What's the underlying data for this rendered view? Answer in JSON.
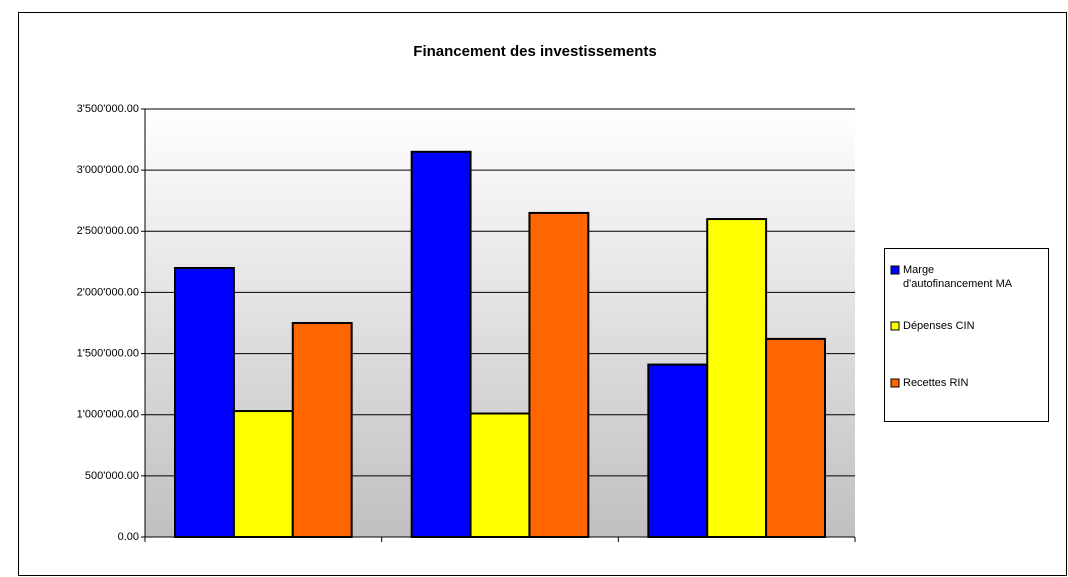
{
  "chart_data": {
    "type": "bar",
    "title": "Financement des investissements",
    "categories": [
      null,
      null,
      null
    ],
    "series": [
      {
        "name": "Marge d'autofinancement MA",
        "color": "#0000ff",
        "values": [
          2200000,
          3150000,
          1410000
        ]
      },
      {
        "name": "Dépenses CIN",
        "color": "#ffff00",
        "values": [
          1030000,
          1010000,
          2600000
        ]
      },
      {
        "name": "Recettes RIN",
        "color": "#ff6600",
        "values": [
          1750000,
          2650000,
          1620000
        ]
      }
    ],
    "ylim": [
      0,
      3500000
    ],
    "yticks": [
      {
        "value": 0,
        "label": "0.00"
      },
      {
        "value": 500000,
        "label": "500'000.00"
      },
      {
        "value": 1000000,
        "label": "1'000'000.00"
      },
      {
        "value": 1500000,
        "label": "1'500'000.00"
      },
      {
        "value": 2000000,
        "label": "2'000'000.00"
      },
      {
        "value": 2500000,
        "label": "2'500'000.00"
      },
      {
        "value": 3000000,
        "label": "3'000'000.00"
      },
      {
        "value": 3500000,
        "label": "3'500'000.00"
      }
    ],
    "grid": true,
    "legend": "right"
  }
}
